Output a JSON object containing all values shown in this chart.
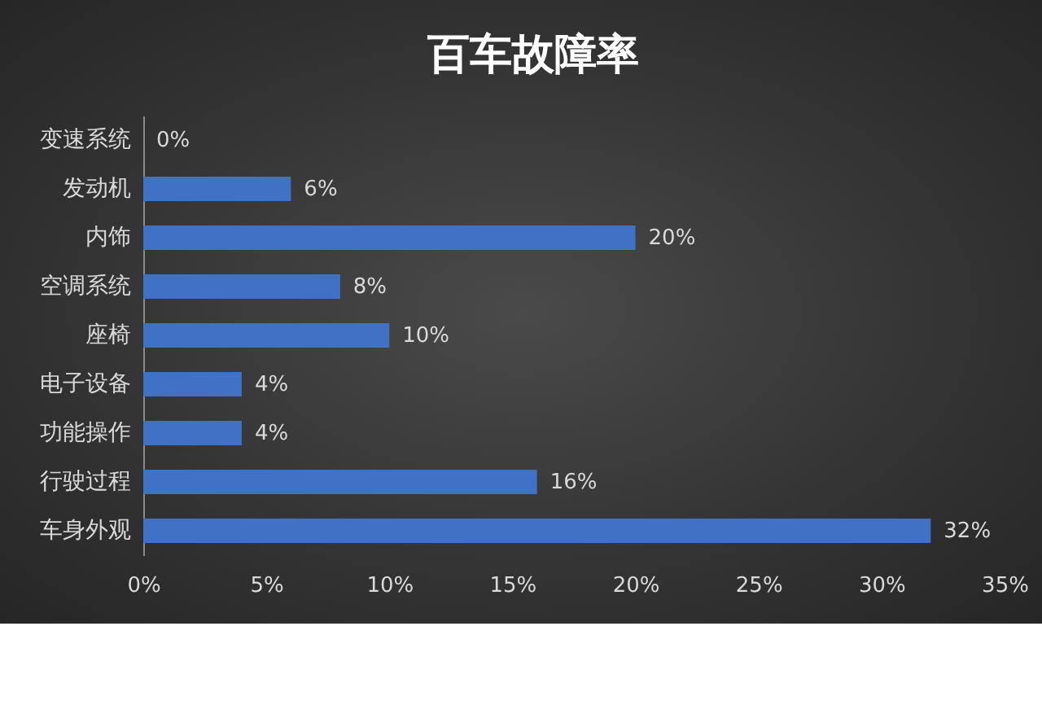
{
  "chart_data": {
    "type": "bar",
    "orientation": "horizontal",
    "title": "百车故障率",
    "categories": [
      "变速系统",
      "发动机",
      "内饰",
      "空调系统",
      "座椅",
      "电子设备",
      "功能操作",
      "行驶过程",
      "车身外观"
    ],
    "values": [
      0,
      6,
      20,
      8,
      10,
      4,
      4,
      16,
      32
    ],
    "value_labels": [
      "0%",
      "6%",
      "20%",
      "8%",
      "10%",
      "4%",
      "4%",
      "16%",
      "32%"
    ],
    "color": "#3f72c4",
    "xlim": [
      0,
      35
    ],
    "xticks": [
      {
        "value": 0,
        "label": "0%"
      },
      {
        "value": 5,
        "label": "5%"
      },
      {
        "value": 10,
        "label": "10%"
      },
      {
        "value": 15,
        "label": "15%"
      },
      {
        "value": 20,
        "label": "20%"
      },
      {
        "value": 25,
        "label": "25%"
      },
      {
        "value": 30,
        "label": "30%"
      },
      {
        "value": 35,
        "label": "35%"
      }
    ],
    "grid": false
  }
}
